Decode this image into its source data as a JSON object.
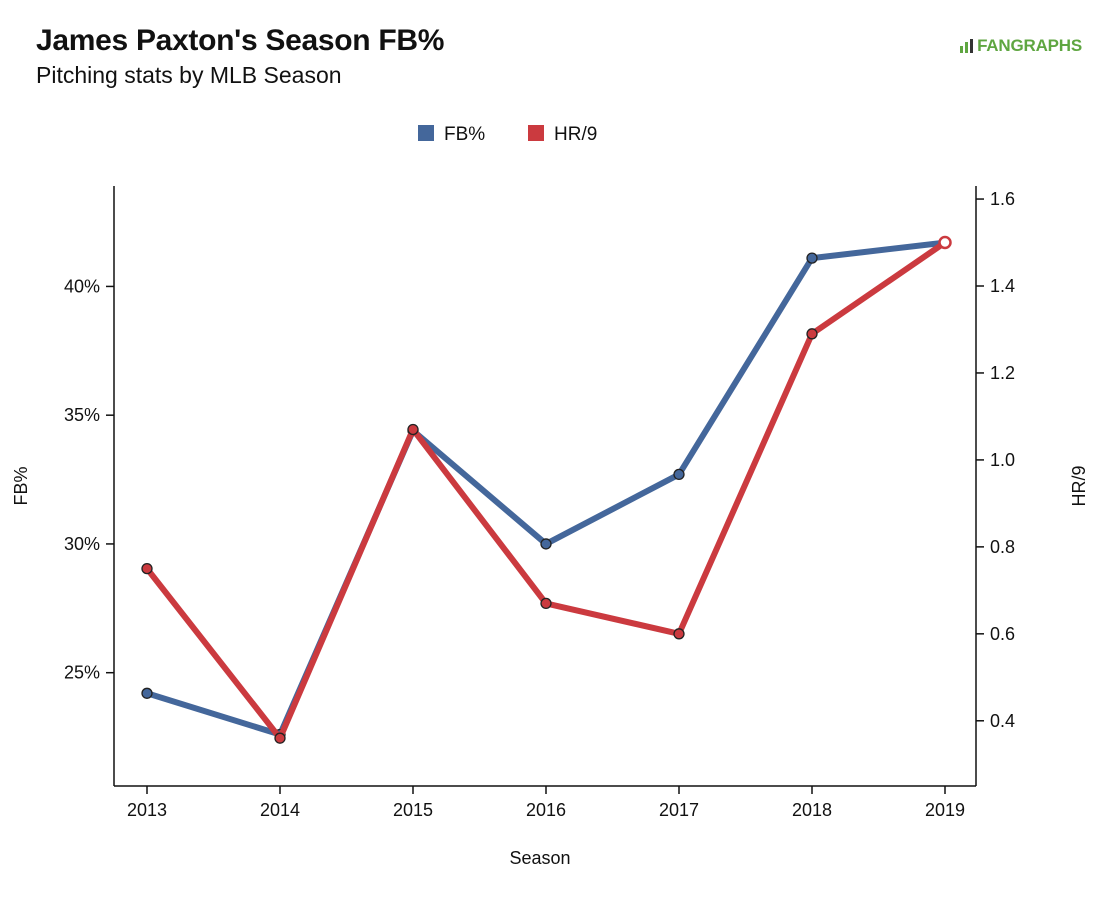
{
  "header": {
    "title": "James Paxton's Season FB%",
    "subtitle": "Pitching stats by MLB Season",
    "logo_text": "FANGRAPHS"
  },
  "chart_data": {
    "type": "line",
    "categories": [
      "2013",
      "2014",
      "2015",
      "2016",
      "2017",
      "2018",
      "2019"
    ],
    "xlabel": "Season",
    "ylabel_left": "FB%",
    "ylabel_right": "HR/9",
    "y_left": {
      "ylim": [
        20.6,
        43.9
      ],
      "ticks": [
        25,
        30,
        35,
        40
      ],
      "tick_labels": [
        "25%",
        "30%",
        "35%",
        "40%"
      ]
    },
    "y_right": {
      "ylim": [
        0.25,
        1.63
      ],
      "ticks": [
        0.4,
        0.6,
        0.8,
        1.0,
        1.2,
        1.4,
        1.6
      ],
      "tick_labels": [
        "0.4",
        "0.6",
        "0.8",
        "1.0",
        "1.2",
        "1.4",
        "1.6"
      ]
    },
    "legend_position": "top-center",
    "grid": false,
    "series": [
      {
        "name": "FB%",
        "axis": "left",
        "color": "#44679b",
        "values": [
          24.2,
          22.6,
          34.4,
          30.0,
          32.7,
          41.1,
          41.7
        ]
      },
      {
        "name": "HR/9",
        "axis": "right",
        "color": "#cb3a3f",
        "values": [
          0.75,
          0.36,
          1.07,
          0.67,
          0.6,
          1.29,
          1.5
        ]
      }
    ]
  }
}
